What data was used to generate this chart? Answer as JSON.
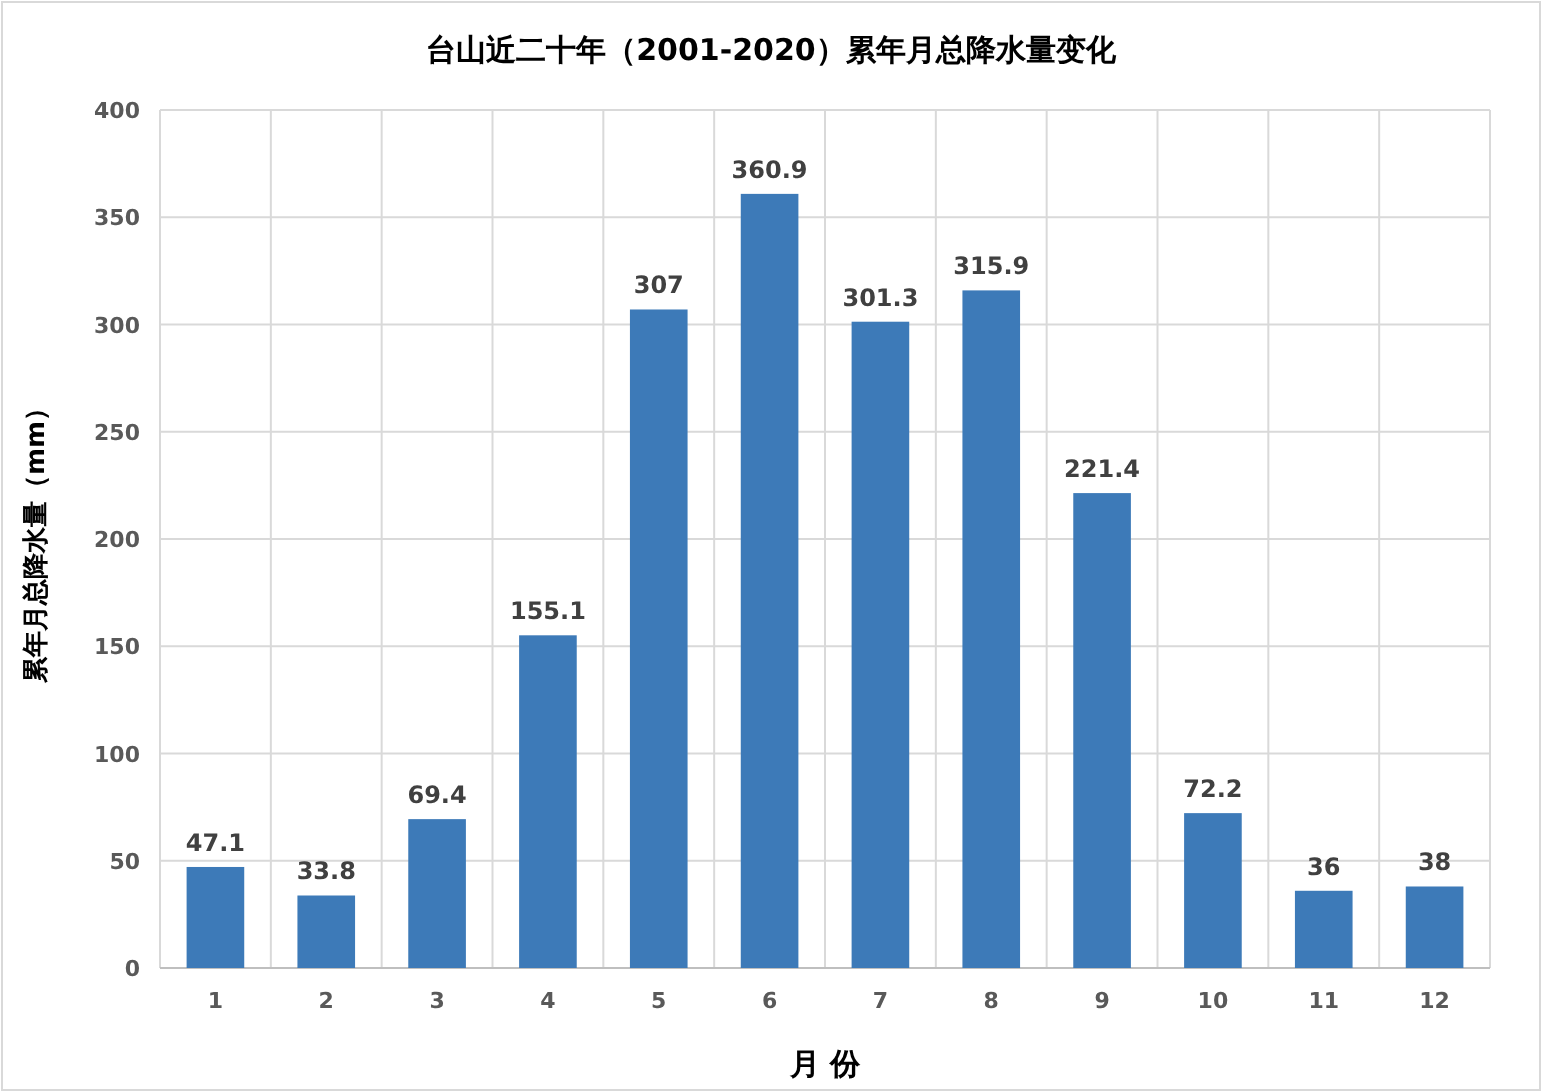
{
  "chart_data": {
    "type": "bar",
    "title": "台山近二十年（2001-2020）累年月总降水量变化",
    "xlabel": "月 份",
    "ylabel": "累年月总降水量（mm）",
    "categories": [
      "1",
      "2",
      "3",
      "4",
      "5",
      "6",
      "7",
      "8",
      "9",
      "10",
      "11",
      "12"
    ],
    "values": [
      47.1,
      33.8,
      69.4,
      155.1,
      307,
      360.9,
      301.3,
      315.9,
      221.4,
      72.2,
      36,
      38
    ],
    "color": "#3d7ab8",
    "ylim": [
      0,
      400
    ],
    "yticks": [
      0,
      50,
      100,
      150,
      200,
      250,
      300,
      350,
      400
    ],
    "grid": true,
    "data_labels": true
  }
}
